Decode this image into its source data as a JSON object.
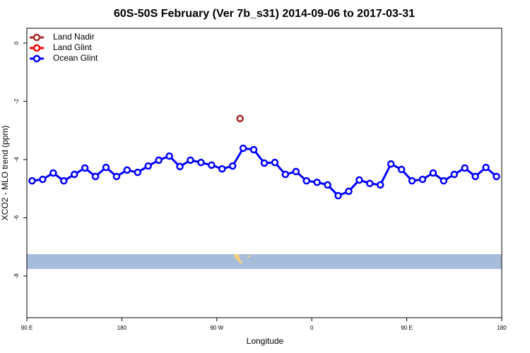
{
  "chart_data": {
    "type": "line",
    "title": "60S-50S February (Ver 7b_s31)   2014-09-06 to 2017-03-31",
    "x_label": "Longitude",
    "y_label": "XCO2 - MLO trend (ppm)",
    "xlim": [
      90,
      540
    ],
    "xticks": [
      {
        "value": 90,
        "label": "90 E"
      },
      180,
      {
        "value": 270,
        "label": "90 W"
      },
      {
        "value": 360,
        "label": "0"
      },
      {
        "value": 450,
        "label": "90 E"
      },
      {
        "value": 540,
        "label": "180"
      }
    ],
    "ylim": [
      -9.43,
      0.51
    ],
    "yticks": [
      0,
      -2,
      -4,
      -6,
      -8
    ],
    "legend": "top-left",
    "series": [
      {
        "name": "Land Nadir",
        "color": "#a52a2a",
        "x": [
          292
        ],
        "values": [
          -2.59
        ]
      },
      {
        "name": "Land Glint",
        "color": "#ff0000",
        "x": [],
        "values": []
      },
      {
        "name": "Ocean Glint",
        "color": "#0000ff",
        "x": [
          95,
          105,
          115,
          125,
          135,
          145,
          155,
          165,
          175,
          185,
          195,
          205,
          215,
          225,
          235,
          245,
          255,
          265,
          275,
          285,
          295,
          305,
          315,
          325,
          335,
          345,
          355,
          365,
          375,
          385,
          395,
          405,
          415,
          425,
          435,
          445,
          455,
          465,
          475,
          485,
          495,
          505,
          515,
          525,
          535
        ],
        "values": [
          -4.73,
          -4.68,
          -4.46,
          -4.73,
          -4.51,
          -4.29,
          -4.58,
          -4.27,
          -4.58,
          -4.36,
          -4.44,
          -4.22,
          -4.02,
          -3.88,
          -4.24,
          -4.02,
          -4.1,
          -4.19,
          -4.32,
          -4.22,
          -3.61,
          -3.66,
          -4.12,
          -4.1,
          -4.51,
          -4.41,
          -4.73,
          -4.78,
          -4.87,
          -5.24,
          -5.09,
          -4.7,
          -4.82,
          -4.87,
          -4.15,
          -4.34,
          -4.73,
          -4.68,
          -4.46,
          -4.73,
          -4.51,
          -4.29,
          -4.58,
          -4.27,
          -4.58
        ]
      }
    ]
  }
}
